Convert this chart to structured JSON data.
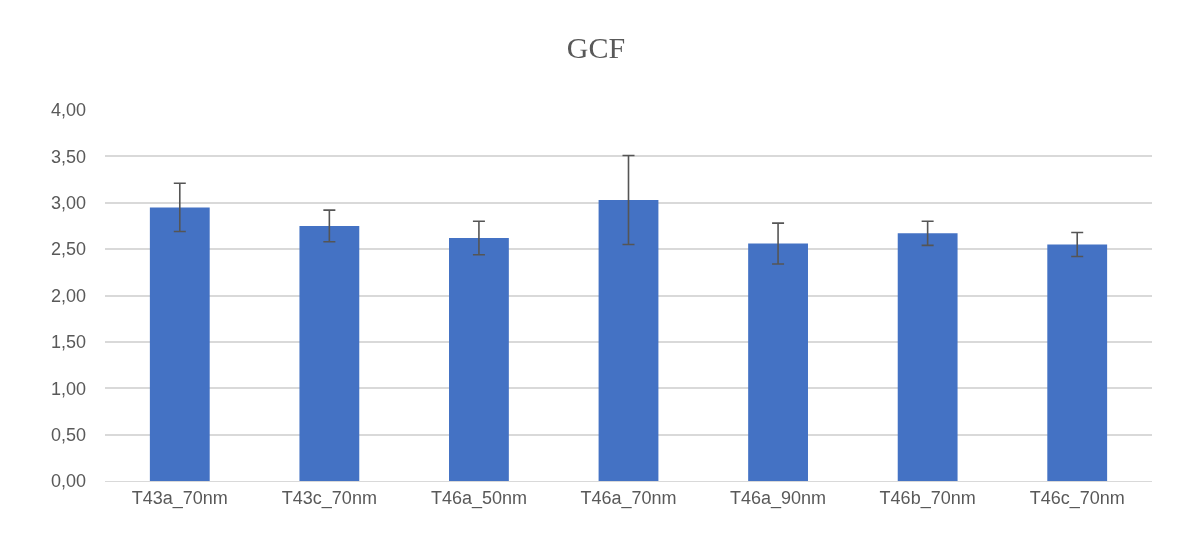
{
  "chart_data": {
    "type": "bar",
    "title": "GCF",
    "categories": [
      "T43a_70nm",
      "T43c_70nm",
      "T46a_50nm",
      "T46a_70nm",
      "T46a_90nm",
      "T46b_70nm",
      "T46c_70nm"
    ],
    "values": [
      2.95,
      2.75,
      2.62,
      3.03,
      2.56,
      2.67,
      2.55
    ],
    "errors": [
      0.26,
      0.17,
      0.18,
      0.48,
      0.22,
      0.13,
      0.13
    ],
    "color": "#4472c4",
    "ylim": [
      0,
      4
    ],
    "yticks": [
      {
        "value": 0,
        "label": "0,00"
      },
      {
        "value": 0.5,
        "label": "0,50"
      },
      {
        "value": 1,
        "label": "1,00"
      },
      {
        "value": 1.5,
        "label": "1,50"
      },
      {
        "value": 2,
        "label": "2,00"
      },
      {
        "value": 2.5,
        "label": "2,50"
      },
      {
        "value": 3,
        "label": "3,00"
      },
      {
        "value": 3.5,
        "label": "3,50"
      },
      {
        "value": 4,
        "label": "4,00"
      }
    ],
    "grid": "y"
  }
}
